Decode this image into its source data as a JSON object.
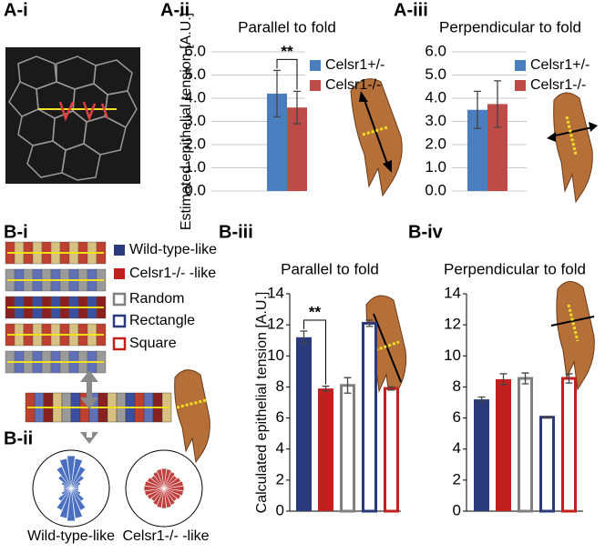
{
  "panels": [
    "A-i",
    "A-ii",
    "A-iii",
    "B-i",
    "B-ii",
    "B-iii",
    "B-iv"
  ],
  "rose_labels": [
    "Wild-type-like",
    "Celsr1-/- -like"
  ],
  "chart_data": [
    {
      "type": "bar",
      "title": "Parallel to fold",
      "y_label": "Estimated epithelial tension [A.U.]",
      "categories": [
        null
      ],
      "ylim": [
        0,
        6
      ],
      "yticks": [
        {
          "value": 0,
          "label": "0.0"
        },
        {
          "value": 1,
          "label": "1.0"
        },
        {
          "value": 2,
          "label": "2.0"
        },
        {
          "value": 3,
          "label": "3.0"
        },
        {
          "value": 4,
          "label": "4.0"
        },
        {
          "value": 5,
          "label": "5.0"
        },
        {
          "value": 6,
          "label": "6.0"
        }
      ],
      "grid": true,
      "annotation": "**",
      "series": [
        {
          "name": "Celsr1+/-",
          "color": "#4a7ebf",
          "style": "filled",
          "values": [
            4.2
          ],
          "errors": [
            1.0
          ]
        },
        {
          "name": "Celsr1-/-",
          "color": "#be4b48",
          "style": "filled",
          "values": [
            3.6
          ],
          "errors": [
            0.7
          ]
        }
      ]
    },
    {
      "type": "bar",
      "title": "Perpendicular to fold",
      "categories": [
        null
      ],
      "ylim": [
        0,
        6
      ],
      "yticks": [
        {
          "value": 0,
          "label": "0.0"
        },
        {
          "value": 1,
          "label": "1.0"
        },
        {
          "value": 2,
          "label": "2.0"
        },
        {
          "value": 3,
          "label": "3.0"
        },
        {
          "value": 4,
          "label": "4.0"
        },
        {
          "value": 5,
          "label": "5.0"
        },
        {
          "value": 6,
          "label": "6.0"
        }
      ],
      "grid": true,
      "series": [
        {
          "name": "Celsr1+/-",
          "color": "#4a7ebf",
          "style": "filled",
          "values": [
            3.5
          ],
          "errors": [
            0.8
          ]
        },
        {
          "name": "Celsr1-/-",
          "color": "#be4b48",
          "style": "filled",
          "values": [
            3.75
          ],
          "errors": [
            1.0
          ]
        }
      ]
    },
    {
      "type": "bar",
      "title": "Parallel to fold",
      "y_label": "Calculated epithelial tension [A.U.]",
      "categories": [
        null
      ],
      "ylim": [
        0,
        14
      ],
      "yticks": [
        0,
        2,
        4,
        6,
        8,
        10,
        12,
        14
      ],
      "grid": false,
      "annotation": "**",
      "series": [
        {
          "name": "Wild-type-like",
          "color": "#2a3a7a",
          "style": "filled",
          "values": [
            11.2
          ],
          "errors": [
            0.4
          ]
        },
        {
          "name": "Celsr1-/- -like",
          "color": "#c0201e",
          "style": "filled",
          "values": [
            7.9
          ],
          "errors": [
            0.15
          ]
        },
        {
          "name": "Random",
          "color": "#808080",
          "style": "outline",
          "values": [
            8.1
          ],
          "errors": [
            0.5
          ]
        },
        {
          "name": "Rectangle",
          "color": "#2a3a7a",
          "style": "outline",
          "values": [
            12.1
          ],
          "errors": [
            0.2
          ]
        },
        {
          "name": "Square",
          "color": "#c0201e",
          "style": "outline",
          "values": [
            7.9
          ],
          "errors": [
            0.1
          ]
        }
      ]
    },
    {
      "type": "bar",
      "title": "Perpendicular to fold",
      "categories": [
        null
      ],
      "ylim": [
        0,
        14
      ],
      "yticks": [
        0,
        2,
        4,
        6,
        8,
        10,
        12,
        14
      ],
      "grid": false,
      "series": [
        {
          "color": "#2a3a7a",
          "style": "filled",
          "values": [
            7.2
          ],
          "errors": [
            0.15
          ]
        },
        {
          "color": "#c0201e",
          "style": "filled",
          "values": [
            8.5
          ],
          "errors": [
            0.35
          ]
        },
        {
          "color": "#808080",
          "style": "outline",
          "values": [
            8.55
          ],
          "errors": [
            0.35
          ]
        },
        {
          "color": "#2a3a7a",
          "style": "outline",
          "values": [
            6.05
          ],
          "errors": [
            0.05
          ]
        },
        {
          "color": "#c0201e",
          "style": "outline",
          "values": [
            8.55
          ],
          "errors": [
            0.3
          ]
        }
      ]
    }
  ]
}
